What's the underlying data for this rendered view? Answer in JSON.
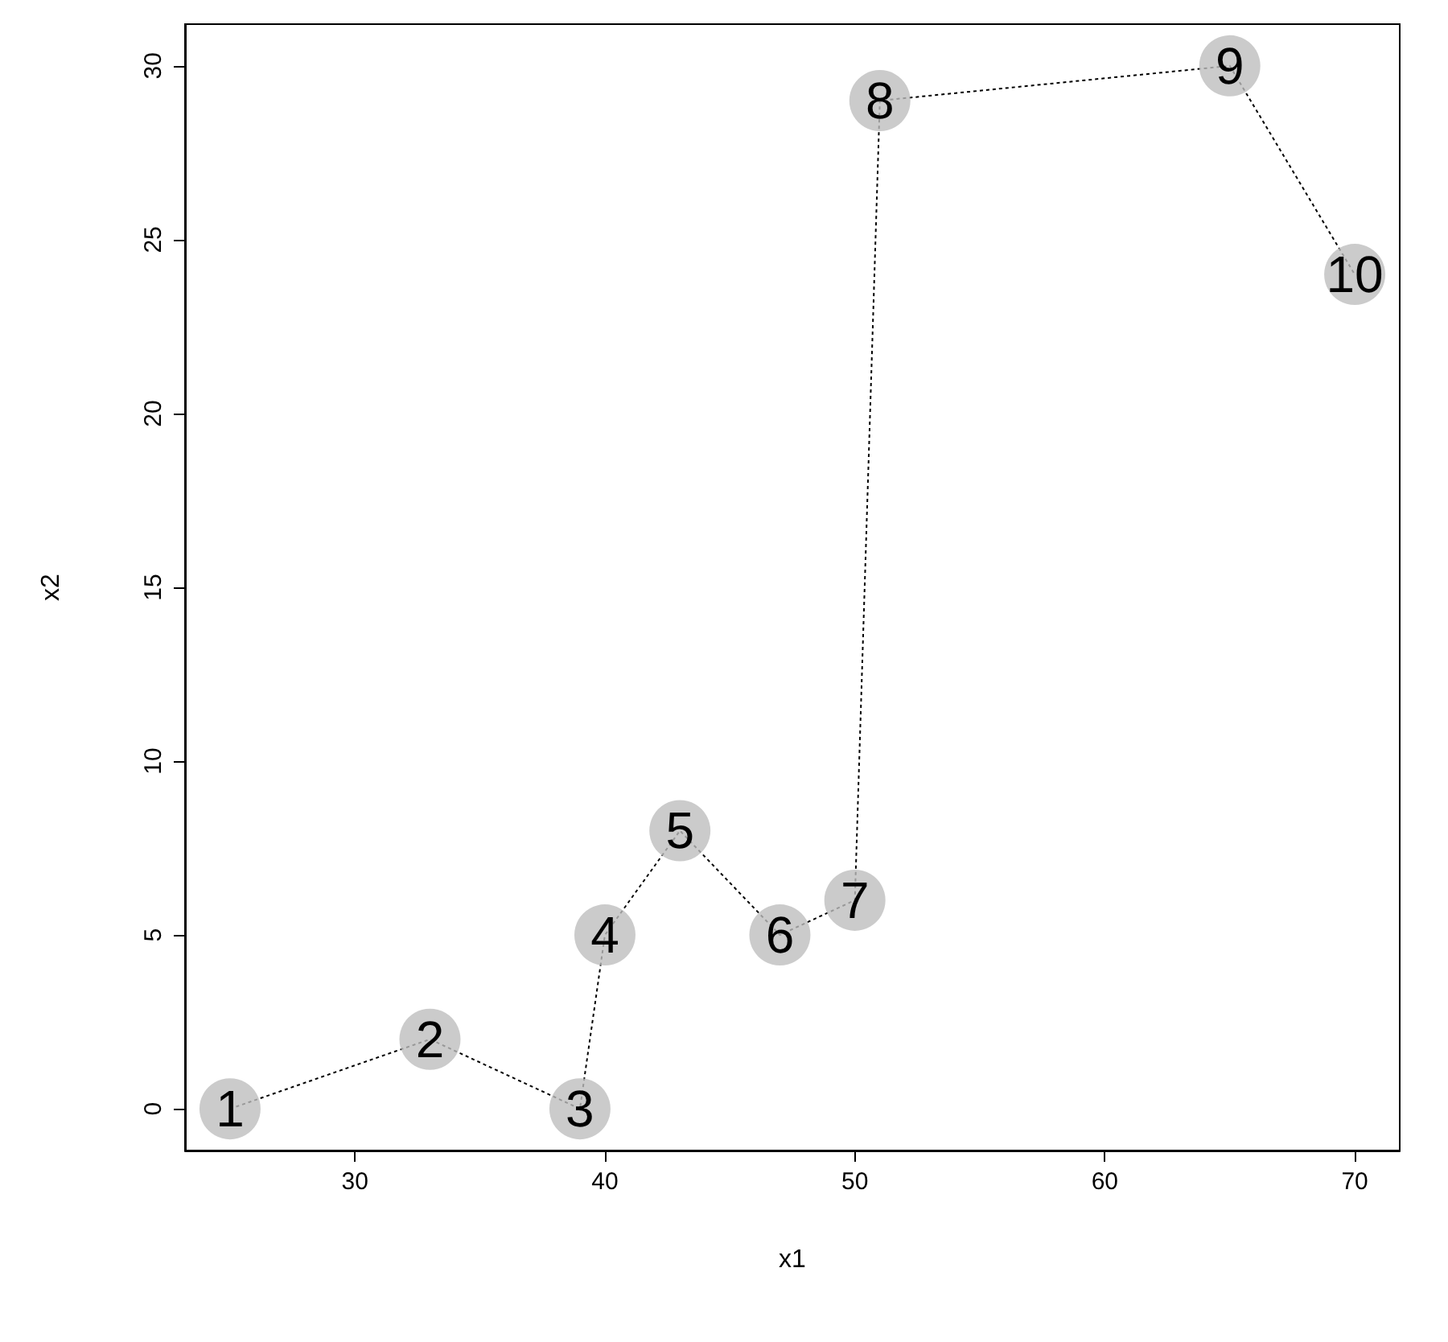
{
  "chart_data": {
    "type": "scatter",
    "xlabel": "x1",
    "ylabel": "x2",
    "x": [
      25,
      33,
      39,
      40,
      43,
      47,
      50,
      51,
      65,
      70
    ],
    "series": [
      {
        "type": "line",
        "color": "#000000",
        "marker": "none",
        "line_style": "dotted",
        "values": [
          0,
          2,
          0,
          5,
          8,
          5,
          6,
          29,
          30,
          24
        ]
      },
      {
        "color": "#bebebe",
        "marker": "circle",
        "values": [
          0,
          2,
          0,
          5,
          8,
          5,
          6,
          29,
          30,
          24
        ]
      }
    ],
    "annotations": [
      {
        "text": "1",
        "x": 25,
        "y": 0
      },
      {
        "text": "2",
        "x": 33,
        "y": 2
      },
      {
        "text": "3",
        "x": 39,
        "y": 0
      },
      {
        "text": "4",
        "x": 40,
        "y": 5
      },
      {
        "text": "5",
        "x": 43,
        "y": 8
      },
      {
        "text": "6",
        "x": 47,
        "y": 5
      },
      {
        "text": "7",
        "x": 50,
        "y": 6
      },
      {
        "text": "8",
        "x": 51,
        "y": 29
      },
      {
        "text": "9",
        "x": 65,
        "y": 30
      },
      {
        "text": "10",
        "x": 70,
        "y": 24
      }
    ],
    "xlim": [
      23.2,
      71.8
    ],
    "ylim": [
      -1.2,
      31.2
    ],
    "xticks": [
      30,
      40,
      50,
      60,
      70
    ],
    "yticks": [
      0,
      5,
      10,
      15,
      20,
      25,
      30
    ],
    "grid": false
  }
}
